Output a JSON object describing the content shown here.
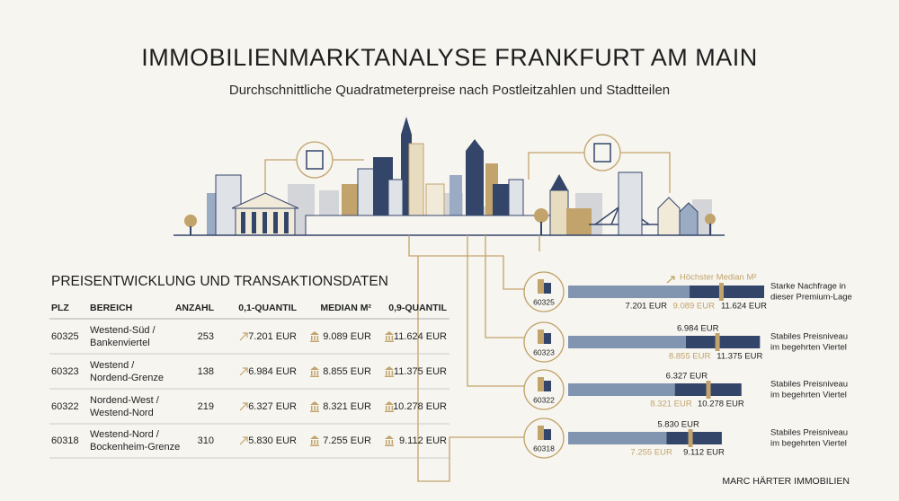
{
  "header": {
    "title": "IMMOBILIENMARKTANALYSE FRANKFURT AM MAIN",
    "subtitle": "Durchschnittliche Quadratmeterpreise nach Postleitzahlen und Stadtteilen"
  },
  "table": {
    "title": "PREISENTWICKLUNG UND TRANSAKTIONSDATEN",
    "columns": [
      "PLZ",
      "BEREICH",
      "ANZAHL",
      "0,1-QUANTIL",
      "MEDIAN M²",
      "0,9-QUANTIL"
    ],
    "rows": [
      [
        "60325",
        [
          "Westend-Süd /",
          "Bankenviertel"
        ],
        "253",
        "7.201 EUR",
        "9.089 EUR",
        "11.624 EUR"
      ],
      [
        "60323",
        [
          "Westend /",
          "Nordend-Grenze"
        ],
        "138",
        "6.984 EUR",
        "8.855 EUR",
        "11.375 EUR"
      ],
      [
        "60322",
        [
          "Nordend-West /",
          "Westend-Nord"
        ],
        "219",
        "6.327 EUR",
        "8.321 EUR",
        "10.278 EUR"
      ],
      [
        "60318",
        [
          "Westend-Nord /",
          "Bockenheim-Grenze"
        ],
        "310",
        "5.830 EUR",
        "7.255 EUR",
        "9.112 EUR"
      ]
    ]
  },
  "chart_data": {
    "type": "range-bar",
    "categories": [
      "60325",
      "60323",
      "60322",
      "60318"
    ],
    "annotation": "Höchster Median M²",
    "low": {
      "values": [
        7201,
        6984,
        6327,
        5830
      ],
      "value_labels": [
        "7.201 EUR",
        "6.984 EUR",
        "6.327 EUR",
        "5.830 EUR"
      ],
      "color": "#8194b0"
    },
    "median": {
      "values": [
        9089,
        8855,
        8321,
        7255
      ],
      "value_labels": [
        "9.089 EUR",
        "8.855 EUR",
        "8.321 EUR",
        "7.255 EUR"
      ],
      "color": "#c2a36b"
    },
    "high": {
      "values": [
        11624,
        11375,
        10278,
        9112
      ],
      "value_labels": [
        "11.624 EUR",
        "11.375 EUR",
        "10.278 EUR",
        "9.112 EUR"
      ],
      "color": "#34456a"
    },
    "notes": [
      [
        "Starke Nachfrage in",
        "dieser Premium-Lage"
      ],
      [
        "Stabiles Preisniveau",
        "im begehrten Viertel"
      ],
      [
        "Stabiles Preisniveau",
        "im begehrten Viertel"
      ],
      [
        "Stabiles Preisniveau",
        "im begehrten Viertel"
      ]
    ]
  },
  "footer": "MARC HÄRTER IMMOBILIEN"
}
